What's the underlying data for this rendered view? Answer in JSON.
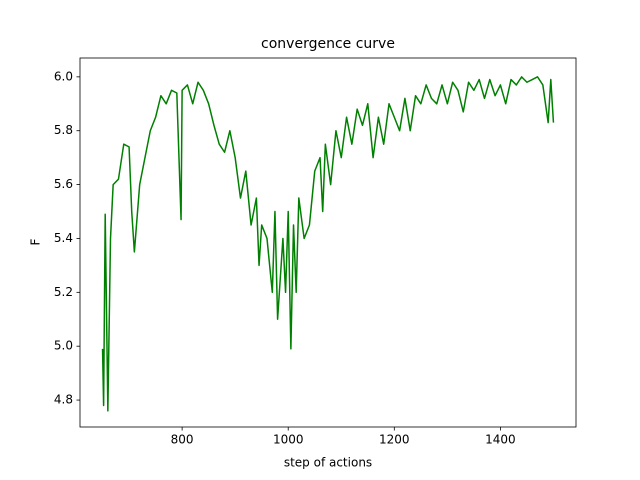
{
  "chart_data": {
    "type": "line",
    "title": "convergence curve",
    "xlabel": "step of actions",
    "ylabel": "F",
    "x": [
      650,
      652,
      655,
      660,
      665,
      670,
      680,
      690,
      700,
      705,
      710,
      720,
      730,
      740,
      750,
      760,
      770,
      780,
      790,
      798,
      800,
      810,
      820,
      830,
      840,
      850,
      860,
      870,
      880,
      890,
      900,
      910,
      920,
      930,
      940,
      945,
      950,
      960,
      970,
      975,
      980,
      990,
      995,
      1000,
      1005,
      1010,
      1015,
      1020,
      1030,
      1040,
      1050,
      1060,
      1065,
      1070,
      1080,
      1090,
      1100,
      1110,
      1120,
      1130,
      1140,
      1150,
      1160,
      1170,
      1180,
      1190,
      1200,
      1210,
      1220,
      1230,
      1240,
      1250,
      1260,
      1270,
      1280,
      1290,
      1300,
      1310,
      1320,
      1330,
      1340,
      1350,
      1360,
      1370,
      1380,
      1390,
      1400,
      1410,
      1420,
      1430,
      1440,
      1450,
      1460,
      1470,
      1480,
      1490,
      1495,
      1500
    ],
    "series": [
      {
        "name": "F",
        "color": "#008000",
        "values": [
          4.99,
          4.78,
          5.49,
          4.76,
          5.4,
          5.6,
          5.62,
          5.75,
          5.74,
          5.5,
          5.35,
          5.6,
          5.7,
          5.8,
          5.85,
          5.93,
          5.9,
          5.95,
          5.94,
          5.47,
          5.95,
          5.97,
          5.9,
          5.98,
          5.95,
          5.9,
          5.82,
          5.75,
          5.72,
          5.8,
          5.7,
          5.55,
          5.65,
          5.45,
          5.55,
          5.3,
          5.45,
          5.4,
          5.2,
          5.5,
          5.1,
          5.4,
          5.2,
          5.5,
          4.99,
          5.45,
          5.2,
          5.55,
          5.4,
          5.45,
          5.65,
          5.7,
          5.5,
          5.75,
          5.6,
          5.8,
          5.7,
          5.85,
          5.75,
          5.88,
          5.82,
          5.9,
          5.7,
          5.85,
          5.75,
          5.9,
          5.85,
          5.8,
          5.92,
          5.8,
          5.93,
          5.9,
          5.97,
          5.92,
          5.9,
          5.97,
          5.9,
          5.98,
          5.95,
          5.87,
          5.98,
          5.95,
          5.99,
          5.92,
          5.99,
          5.93,
          5.97,
          5.9,
          5.99,
          5.97,
          6.0,
          5.98,
          5.99,
          6.0,
          5.97,
          5.83,
          5.99,
          5.83
        ]
      }
    ],
    "xlim": [
      607.5,
      1542.5
    ],
    "ylim": [
      4.7,
      6.07
    ],
    "xticks": [
      800,
      1000,
      1200,
      1400
    ],
    "yticks": [
      4.8,
      {
        "value": 5,
        "label": "5.0"
      },
      5.2,
      5.4,
      5.6,
      5.8,
      {
        "value": 6,
        "label": "6.0"
      }
    ],
    "grid": false
  }
}
